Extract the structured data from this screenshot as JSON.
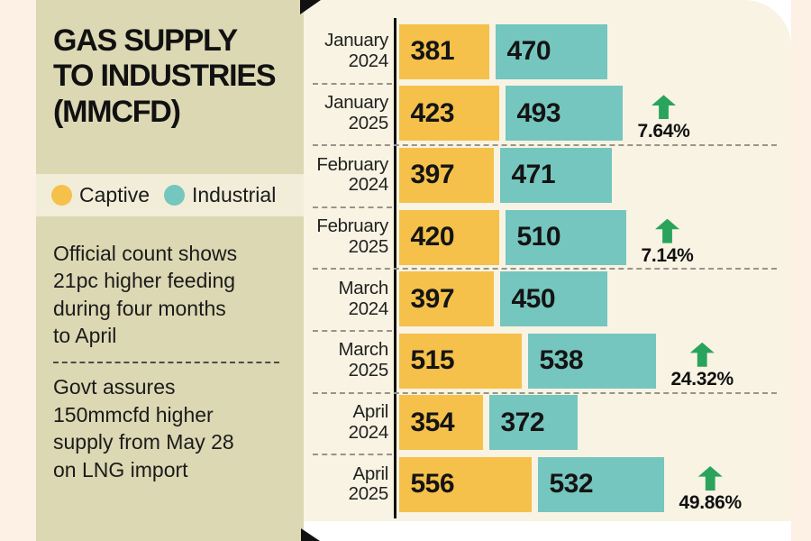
{
  "panel": {
    "title": "GAS SUPPLY\nTO INDUSTRIES\n(MMCFD)",
    "note1": "Official count shows\n21pc higher feeding\nduring four months\nto April",
    "note2": "Govt assures\n150mmcfd higher\nsupply from May 28\non LNG import"
  },
  "legend": {
    "items": [
      {
        "label": "Captive",
        "color": "#f5c14b"
      },
      {
        "label": "Industrial",
        "color": "#75c6be"
      }
    ]
  },
  "colors": {
    "captive_bar": "#f5c14b",
    "industrial_bar": "#75c6be",
    "arrow_green": "#2aa35c",
    "panel_khaki": "#dcd8b3",
    "panel_light_band": "#f1edd9",
    "chart_cream": "#f8f3e3",
    "edge_pink": "#fdf0e4"
  },
  "chart_data": {
    "type": "bar",
    "orientation": "horizontal",
    "title": "GAS SUPPLY TO INDUSTRIES (MMCFD)",
    "unit": "MMCFD",
    "series_names": [
      "Captive",
      "Industrial"
    ],
    "legend_position": "left-panel",
    "grid": "dashed-row-separators",
    "rows": [
      {
        "month": "January",
        "year": "2024",
        "captive": 381,
        "industrial": 470,
        "change": null
      },
      {
        "month": "January",
        "year": "2025",
        "captive": 423,
        "industrial": 493,
        "change": "7.64%"
      },
      {
        "month": "February",
        "year": "2024",
        "captive": 397,
        "industrial": 471,
        "change": null
      },
      {
        "month": "February",
        "year": "2025",
        "captive": 420,
        "industrial": 510,
        "change": "7.14%"
      },
      {
        "month": "March",
        "year": "2024",
        "captive": 397,
        "industrial": 450,
        "change": null
      },
      {
        "month": "March",
        "year": "2025",
        "captive": 515,
        "industrial": 538,
        "change": "24.32%"
      },
      {
        "month": "April",
        "year": "2024",
        "captive": 354,
        "industrial": 372,
        "change": null
      },
      {
        "month": "April",
        "year": "2025",
        "captive": 556,
        "industrial": 532,
        "change": "49.86%"
      }
    ]
  }
}
